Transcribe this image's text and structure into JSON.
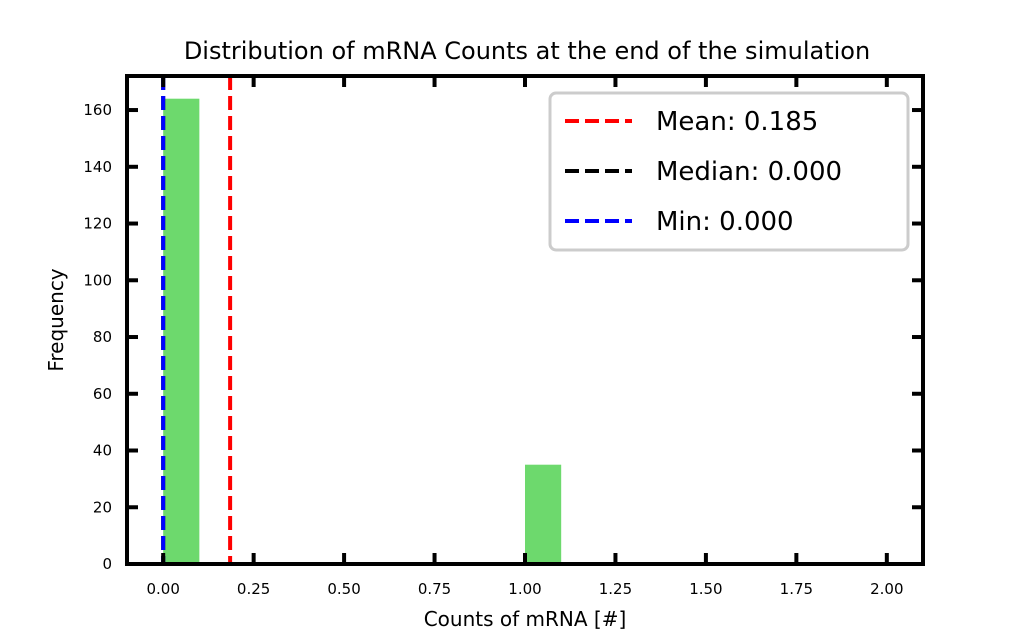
{
  "chart_data": {
    "type": "bar",
    "title": "Distribution of mRNA Counts at the end of the simulation",
    "xlabel": "Counts of mRNA [#]",
    "ylabel": "Frequency",
    "xlim": [
      -0.1,
      2.1
    ],
    "ylim": [
      0,
      172
    ],
    "xticks": [
      "0.00",
      "0.25",
      "0.50",
      "0.75",
      "1.00",
      "1.25",
      "1.50",
      "1.75",
      "2.00"
    ],
    "xtick_values": [
      0,
      0.25,
      0.5,
      0.75,
      1.0,
      1.25,
      1.5,
      1.75,
      2.0
    ],
    "yticks": [
      "0",
      "20",
      "40",
      "60",
      "80",
      "100",
      "120",
      "140",
      "160"
    ],
    "ytick_values": [
      0,
      20,
      40,
      60,
      80,
      100,
      120,
      140,
      160
    ],
    "bins": [
      {
        "start": 0.0,
        "end": 0.1,
        "value": 164
      },
      {
        "start": 1.0,
        "end": 1.1,
        "value": 35
      }
    ],
    "bar_color": "#6dd96d",
    "grid": false,
    "legend_position": "top-right",
    "lines": [
      {
        "label": "Mean: 0.185",
        "x": 0.185,
        "color": "#ff0000"
      },
      {
        "label": "Median: 0.000",
        "x": 0.0,
        "color": "#000000"
      },
      {
        "label": "Min: 0.000",
        "x": 0.0,
        "color": "#0000ff"
      }
    ]
  }
}
